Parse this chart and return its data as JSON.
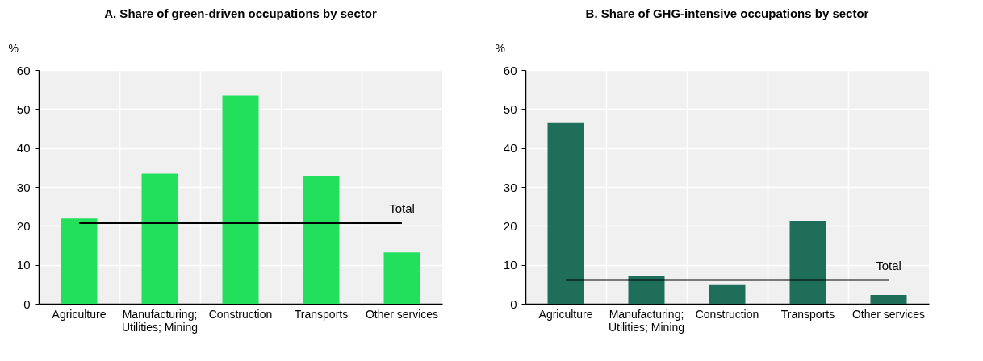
{
  "chart_data": [
    {
      "type": "bar",
      "title": "A. Share of green-driven occupations by sector",
      "ylabel": "%",
      "categories": [
        "Agriculture",
        "Manufacturing; Utilities; Mining",
        "Construction",
        "Transports",
        "Other services"
      ],
      "series": [
        {
          "color": "#22e05c",
          "values": [
            21.9,
            33.4,
            53.5,
            32.7,
            13.2
          ]
        }
      ],
      "ylim": [
        0,
        60
      ],
      "yticks": [
        0,
        10,
        20,
        30,
        40,
        50,
        60
      ],
      "grid": true,
      "ref_lines": [
        {
          "axis": "y",
          "value": 20.7,
          "label": "Total",
          "color": "#000000"
        }
      ]
    },
    {
      "type": "bar",
      "title": "B. Share of GHG-intensive occupations by sector",
      "ylabel": "%",
      "categories": [
        "Agriculture",
        "Manufacturing; Utilities; Mining",
        "Construction",
        "Transports",
        "Other services"
      ],
      "series": [
        {
          "color": "#1f6e5a",
          "values": [
            46.4,
            7.2,
            4.8,
            21.3,
            2.3
          ]
        }
      ],
      "ylim": [
        0,
        60
      ],
      "yticks": [
        0,
        10,
        20,
        30,
        40,
        50,
        60
      ],
      "grid": true,
      "ref_lines": [
        {
          "axis": "y",
          "value": 6.1,
          "label": "Total",
          "color": "#000000"
        }
      ]
    }
  ]
}
